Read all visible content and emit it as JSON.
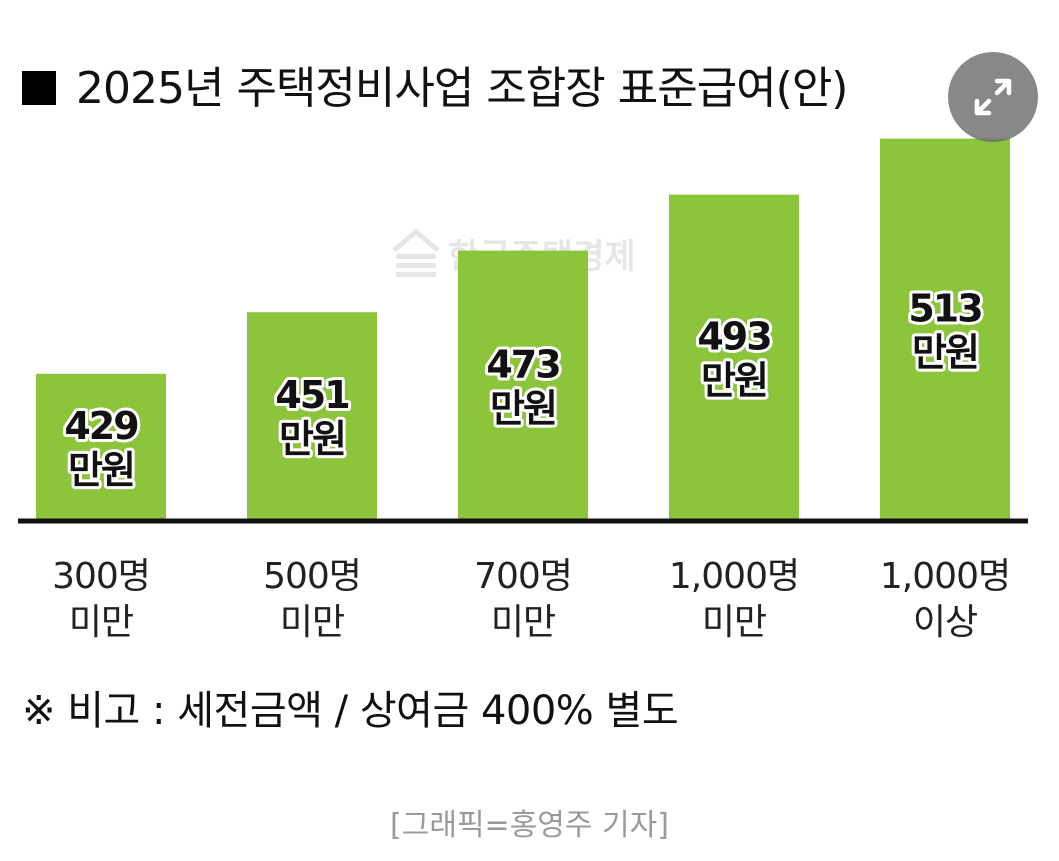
{
  "title": "2025년 주택정비사업 조합장 표준급여(안)",
  "watermark": "한국주택경제",
  "note": "※ 비고 : 세전금액 / 상여금 400% 별도",
  "credit": "[그래픽=홍영주 기자]",
  "colors": {
    "bar": "#8cc43c",
    "axis": "#111111",
    "label_stroke": "#ffffff"
  },
  "icons": {
    "watermark": "building-logo-icon",
    "expand": "expand-icon"
  },
  "chart_data": {
    "type": "bar",
    "title": "2025년 주택정비사업 조합장 표준급여(안)",
    "xlabel": "",
    "ylabel": "",
    "unit": "만원",
    "categories": [
      [
        "300명",
        "미만"
      ],
      [
        "500명",
        "미만"
      ],
      [
        "700명",
        "미만"
      ],
      [
        "1,000명",
        "미만"
      ],
      [
        "1,000명",
        "이상"
      ]
    ],
    "values": [
      429,
      451,
      473,
      493,
      513
    ],
    "grid": false,
    "legend": "none"
  }
}
